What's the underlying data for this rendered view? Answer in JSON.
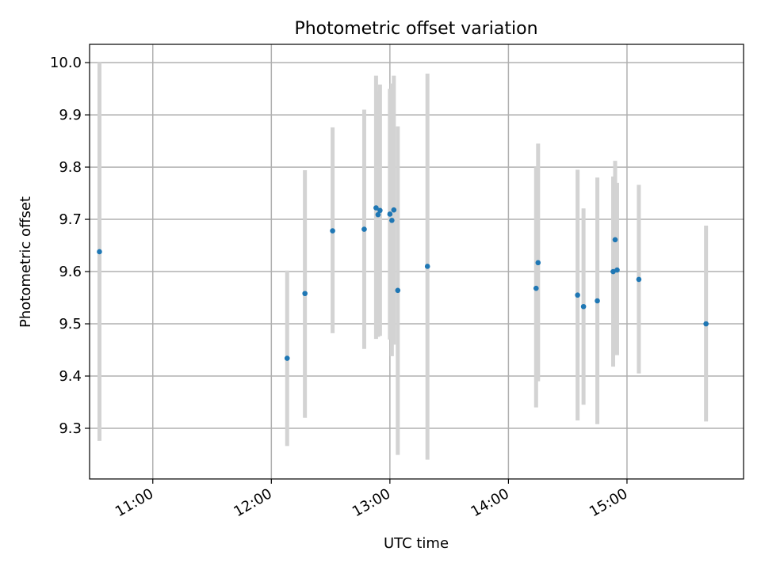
{
  "chart_data": {
    "type": "scatter",
    "title": "Photometric offset variation",
    "xlabel": "UTC time",
    "ylabel": "Photometric offset",
    "x_unit": "UTC time (HH:MM)",
    "xlim": [
      "10:28",
      "15:59"
    ],
    "ylim": [
      9.203,
      10.035
    ],
    "x_ticks": [
      "11:00",
      "12:00",
      "13:00",
      "14:00",
      "15:00"
    ],
    "y_ticks": [
      "9.3",
      "9.4",
      "9.5",
      "9.6",
      "9.7",
      "9.8",
      "9.9",
      "10.0"
    ],
    "grid": true,
    "legend": "none",
    "colors": {
      "point": "#1f77b4",
      "errorbar": "#d3d3d3",
      "grid": "#b0b0b0"
    },
    "points": [
      {
        "x": "10:33",
        "y": 9.638,
        "y_low": 9.276,
        "y_high": 10.0
      },
      {
        "x": "12:08",
        "y": 9.434,
        "y_low": 9.266,
        "y_high": 9.602
      },
      {
        "x": "12:17",
        "y": 9.558,
        "y_low": 9.32,
        "y_high": 9.794
      },
      {
        "x": "12:31",
        "y": 9.678,
        "y_low": 9.482,
        "y_high": 9.876
      },
      {
        "x": "12:47",
        "y": 9.681,
        "y_low": 9.452,
        "y_high": 9.91
      },
      {
        "x": "12:53",
        "y": 9.722,
        "y_low": 9.471,
        "y_high": 9.975
      },
      {
        "x": "12:54",
        "y": 9.709,
        "y_low": 9.475,
        "y_high": 9.945
      },
      {
        "x": "12:55",
        "y": 9.717,
        "y_low": 9.477,
        "y_high": 9.958
      },
      {
        "x": "13:00",
        "y": 9.71,
        "y_low": 9.47,
        "y_high": 9.95
      },
      {
        "x": "13:01",
        "y": 9.698,
        "y_low": 9.438,
        "y_high": 9.96
      },
      {
        "x": "13:02",
        "y": 9.718,
        "y_low": 9.46,
        "y_high": 9.975
      },
      {
        "x": "13:04",
        "y": 9.564,
        "y_low": 9.249,
        "y_high": 9.878
      },
      {
        "x": "13:19",
        "y": 9.61,
        "y_low": 9.24,
        "y_high": 9.979
      },
      {
        "x": "14:14",
        "y": 9.568,
        "y_low": 9.34,
        "y_high": 9.8
      },
      {
        "x": "14:15",
        "y": 9.617,
        "y_low": 9.39,
        "y_high": 9.845
      },
      {
        "x": "14:35",
        "y": 9.555,
        "y_low": 9.315,
        "y_high": 9.795
      },
      {
        "x": "14:38",
        "y": 9.533,
        "y_low": 9.345,
        "y_high": 9.721
      },
      {
        "x": "14:45",
        "y": 9.544,
        "y_low": 9.308,
        "y_high": 9.78
      },
      {
        "x": "14:53",
        "y": 9.6,
        "y_low": 9.418,
        "y_high": 9.782
      },
      {
        "x": "14:54",
        "y": 9.661,
        "y_low": 9.51,
        "y_high": 9.812
      },
      {
        "x": "14:55",
        "y": 9.603,
        "y_low": 9.44,
        "y_high": 9.77
      },
      {
        "x": "15:06",
        "y": 9.585,
        "y_low": 9.405,
        "y_high": 9.766
      },
      {
        "x": "15:40",
        "y": 9.5,
        "y_low": 9.313,
        "y_high": 9.688
      }
    ]
  }
}
